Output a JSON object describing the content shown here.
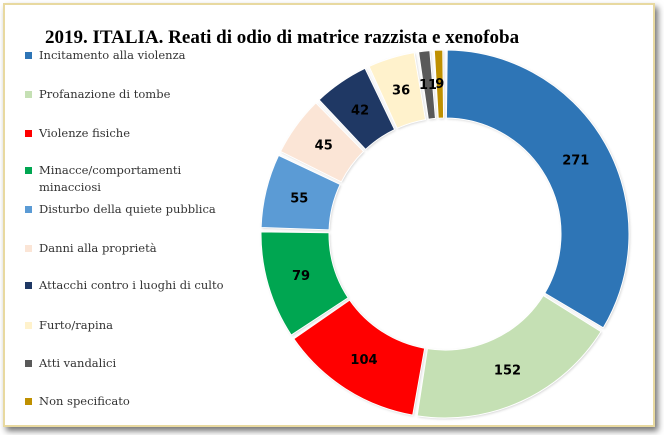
{
  "chart_data": {
    "type": "pie",
    "title": "2019. ITALIA. Reati di odio di matrice razzista e xenofoba",
    "legend_position": "left",
    "categories": [
      "Incitamento alla violenza",
      "Profanazione di tombe",
      "Violenze fisiche",
      "Minacce/comportamenti minacciosi",
      "Disturbo della quiete pubblica",
      "Danni alla proprietà",
      "Attacchi contro i luoghi di culto",
      "Furto/rapina",
      "Atti vandalici",
      "Non specificato"
    ],
    "values": [
      271,
      152,
      104,
      79,
      55,
      45,
      42,
      36,
      11,
      9
    ],
    "colors": [
      "#2e75b6",
      "#c5e0b4",
      "#ff0000",
      "#00a651",
      "#5b9bd5",
      "#fbe5d6",
      "#1f3864",
      "#fff2cc",
      "#595959",
      "#bf9000"
    ]
  }
}
